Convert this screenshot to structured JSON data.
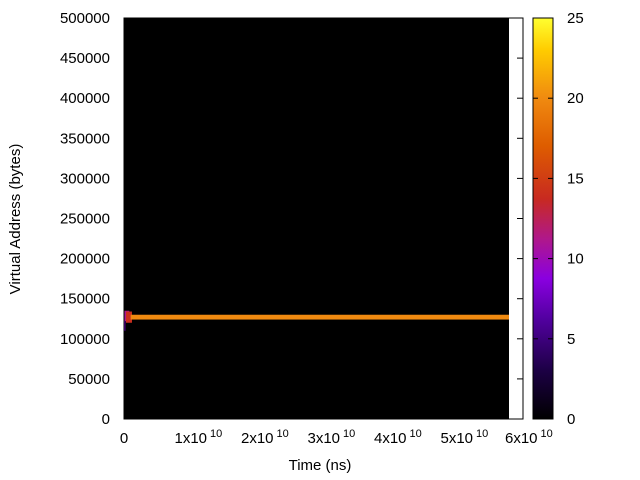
{
  "chart_data": {
    "type": "heatmap",
    "title": "",
    "xlabel": "Time (ns)",
    "ylabel": "Virtual Address (bytes)",
    "xlim": [
      0,
      60000000000
    ],
    "ylim": [
      0,
      500000
    ],
    "x_ticks": [
      {
        "value": 0,
        "mantissa": "0",
        "exponent": ""
      },
      {
        "value": 10000000000,
        "mantissa": "1x10",
        "exponent": "10"
      },
      {
        "value": 20000000000,
        "mantissa": "2x10",
        "exponent": "10"
      },
      {
        "value": 30000000000,
        "mantissa": "3x10",
        "exponent": "10"
      },
      {
        "value": 40000000000,
        "mantissa": "4x10",
        "exponent": "10"
      },
      {
        "value": 50000000000,
        "mantissa": "5x10",
        "exponent": "10"
      },
      {
        "value": 60000000000,
        "mantissa": "6x10",
        "exponent": "10"
      }
    ],
    "y_ticks": [
      {
        "value": 0,
        "label": "0"
      },
      {
        "value": 50000,
        "label": "50000"
      },
      {
        "value": 100000,
        "label": "100000"
      },
      {
        "value": 150000,
        "label": "150000"
      },
      {
        "value": 200000,
        "label": "200000"
      },
      {
        "value": 250000,
        "label": "250000"
      },
      {
        "value": 300000,
        "label": "300000"
      },
      {
        "value": 350000,
        "label": "350000"
      },
      {
        "value": 400000,
        "label": "400000"
      },
      {
        "value": 450000,
        "label": "450000"
      },
      {
        "value": 500000,
        "label": "500000"
      }
    ],
    "data_extent_x": [
      0,
      60000000000
    ],
    "background_value": 0,
    "cells": [
      {
        "x": [
          0,
          200000000
        ],
        "y": [
          110000,
          130000
        ],
        "value": 8
      },
      {
        "x": [
          0,
          800000000
        ],
        "y": [
          122000,
          135000
        ],
        "value": 11
      },
      {
        "x": [
          300000000,
          1200000000
        ],
        "y": [
          120000,
          134000
        ],
        "value": 14
      },
      {
        "x": [
          1000000000,
          60000000000
        ],
        "y": [
          124000,
          130000
        ],
        "value": 20
      }
    ],
    "colorbar": {
      "range": [
        0,
        25
      ],
      "ticks": [
        {
          "value": 0,
          "label": "0"
        },
        {
          "value": 5,
          "label": "5"
        },
        {
          "value": 10,
          "label": "10"
        },
        {
          "value": 15,
          "label": "15"
        },
        {
          "value": 20,
          "label": "20"
        },
        {
          "value": 25,
          "label": "25"
        }
      ],
      "palette": "black-purple-red-orange-yellow"
    },
    "colors": {
      "background": "#000000",
      "band": "#f08a10",
      "frame": "#000000"
    },
    "legend": "none",
    "grid": false
  }
}
